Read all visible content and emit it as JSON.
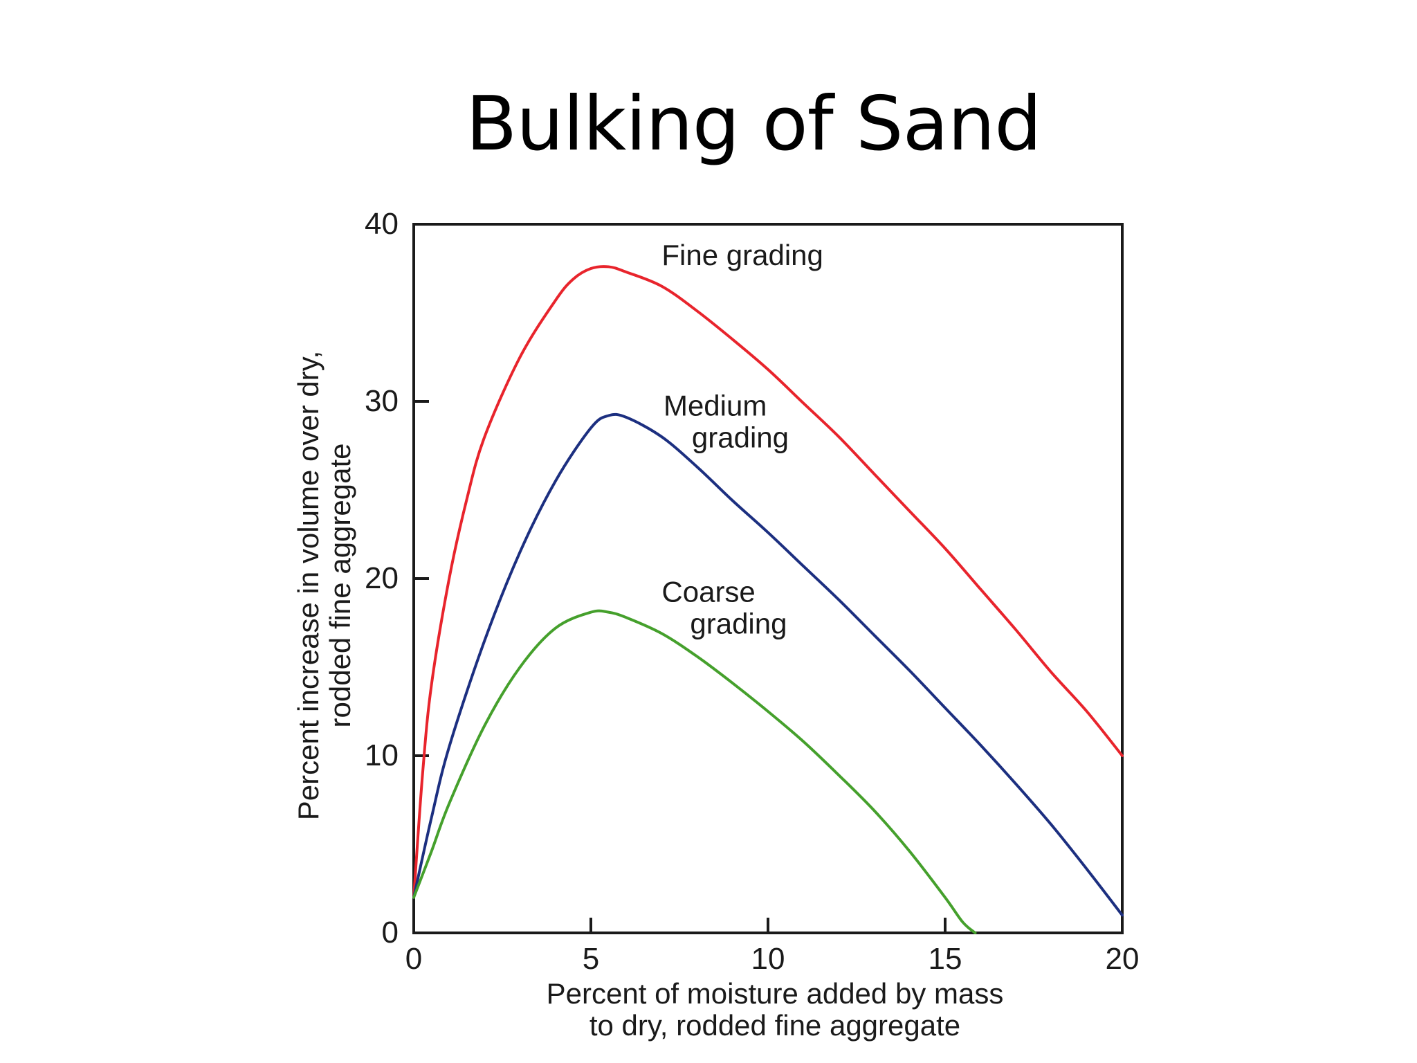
{
  "slide": {
    "title": "Bulking of Sand"
  },
  "chart_data": {
    "type": "line",
    "xlabel_lines": [
      "Percent of moisture added by mass",
      "to dry, rodded fine aggregate"
    ],
    "ylabel_lines": [
      "Percent increase in volume over dry,",
      "rodded fine aggregate"
    ],
    "xlim": [
      0,
      20
    ],
    "ylim": [
      0,
      40
    ],
    "xticks": [
      0,
      5,
      10,
      15,
      20
    ],
    "yticks": [
      0,
      10,
      20,
      30,
      40
    ],
    "grid": false,
    "series": [
      {
        "label_lines": [
          "Fine grading"
        ],
        "color": "#e8242c",
        "x": [
          0,
          0.25,
          0.5,
          1,
          1.5,
          2,
          3,
          4,
          4.5,
          5,
          5.5,
          6,
          7,
          8,
          9,
          10,
          11,
          12,
          13,
          14,
          15,
          16,
          17,
          18,
          19,
          20
        ],
        "y": [
          2,
          9,
          14,
          20,
          24.5,
          28,
          32.5,
          35.7,
          36.9,
          37.5,
          37.6,
          37.3,
          36.5,
          35.1,
          33.5,
          31.8,
          29.9,
          28,
          25.9,
          23.8,
          21.7,
          19.4,
          17.1,
          14.7,
          12.5,
          10
        ]
      },
      {
        "label_lines": [
          "Medium",
          "grading"
        ],
        "color": "#1c2f80",
        "x": [
          0,
          0.5,
          1,
          2,
          3,
          4,
          5,
          5.5,
          6,
          7,
          8,
          9,
          10,
          11,
          12,
          13,
          14,
          15,
          16,
          17,
          18,
          19,
          20
        ],
        "y": [
          2,
          6.5,
          10.5,
          16.5,
          21.5,
          25.5,
          28.5,
          29.2,
          29.1,
          28,
          26.3,
          24.4,
          22.6,
          20.7,
          18.8,
          16.8,
          14.8,
          12.7,
          10.6,
          8.4,
          6.1,
          3.6,
          1
        ]
      },
      {
        "label_lines": [
          "Coarse",
          "grading"
        ],
        "color": "#45a02c",
        "x": [
          0,
          0.5,
          1,
          2,
          3,
          4,
          5,
          5.5,
          6,
          7,
          8,
          9,
          10,
          11,
          12,
          13,
          14,
          15,
          15.5,
          15.85
        ],
        "y": [
          2,
          4.6,
          7.3,
          11.7,
          15,
          17.2,
          18.1,
          18.1,
          17.8,
          16.9,
          15.6,
          14.1,
          12.5,
          10.8,
          8.9,
          6.9,
          4.6,
          2,
          0.6,
          0
        ]
      }
    ]
  }
}
